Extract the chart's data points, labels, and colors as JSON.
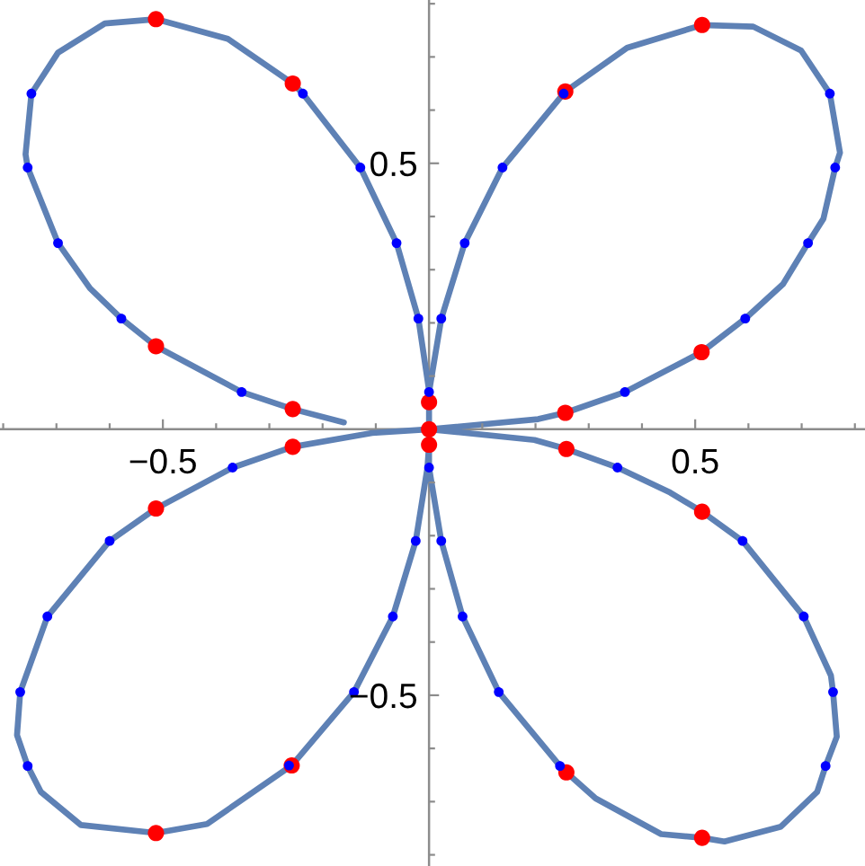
{
  "chart_data": {
    "type": "line",
    "series": [
      {
        "color": "#5e81b5",
        "line_style": "solid",
        "x": [
          0,
          0.205,
          0.256,
          0.368,
          0.512,
          0.594,
          0.665,
          0.712,
          0.741,
          0.763,
          0.772,
          0.753,
          0.699,
          0.609,
          0.513,
          0.372,
          0.256,
          0.138,
          0.067,
          0.023,
          0,
          0,
          0,
          0,
          0,
          0.023,
          0.063,
          0.131,
          0.246,
          0.258,
          0.313,
          0.436,
          0.513,
          0.555,
          0.661,
          0.729,
          0.745,
          0.766,
          0.759,
          0.755,
          0.704,
          0.589,
          0.513,
          0.453,
          0.354,
          0.258,
          0.198,
          0,
          -0.107,
          -0.256,
          -0.369,
          -0.513,
          -0.6,
          -0.717,
          -0.768,
          -0.774,
          -0.754,
          -0.729,
          -0.654,
          -0.513,
          -0.417,
          -0.258,
          -0.141,
          -0.068,
          -0.025,
          -0.003,
          0,
          0,
          0,
          0,
          -0.02,
          -0.061,
          -0.129,
          -0.237,
          -0.256,
          -0.378,
          -0.513,
          -0.609,
          -0.697,
          -0.747,
          -0.758,
          -0.754,
          -0.697,
          -0.637,
          -0.578,
          -0.513,
          -0.352,
          -0.256,
          -0.16
        ],
        "values": [
          0,
          0.019,
          0.031,
          0.07,
          0.145,
          0.208,
          0.273,
          0.35,
          0.396,
          0.492,
          0.52,
          0.631,
          0.712,
          0.757,
          0.76,
          0.717,
          0.635,
          0.492,
          0.35,
          0.208,
          0.07,
          0.051,
          0,
          -0.029,
          -0.072,
          -0.21,
          -0.352,
          -0.494,
          -0.633,
          -0.645,
          -0.694,
          -0.761,
          -0.768,
          -0.775,
          -0.747,
          -0.682,
          -0.633,
          -0.578,
          -0.494,
          -0.463,
          -0.352,
          -0.21,
          -0.155,
          -0.119,
          -0.072,
          -0.037,
          -0.02,
          0,
          -0.007,
          -0.033,
          -0.072,
          -0.149,
          -0.21,
          -0.352,
          -0.494,
          -0.575,
          -0.633,
          -0.682,
          -0.744,
          -0.759,
          -0.742,
          -0.632,
          -0.494,
          -0.352,
          -0.21,
          -0.072,
          -0.029,
          0,
          0.051,
          0.073,
          0.208,
          0.35,
          0.492,
          0.631,
          0.65,
          0.734,
          0.771,
          0.763,
          0.708,
          0.631,
          0.517,
          0.492,
          0.35,
          0.265,
          0.208,
          0.156,
          0.07,
          0.038,
          0.013
        ]
      },
      {
        "type": "scatter",
        "color": "#ff0000",
        "marker": "circle",
        "x": [
          0,
          0.256,
          0.512,
          0.513,
          0.256,
          0,
          0,
          0.258,
          0.513,
          0.513,
          0.258,
          -0.256,
          -0.513,
          -0.513,
          -0.258,
          -0.256,
          -0.513,
          -0.513,
          -0.256
        ],
        "values": [
          0,
          0.031,
          0.145,
          0.76,
          0.635,
          0.051,
          -0.029,
          -0.645,
          -0.768,
          -0.155,
          -0.037,
          -0.033,
          -0.149,
          -0.759,
          -0.632,
          0.65,
          0.771,
          0.156,
          0.038
        ]
      },
      {
        "type": "scatter",
        "color": "#0000ff",
        "marker": "circle",
        "x": [
          0,
          0.023,
          0.067,
          0.138,
          0.253,
          0.753,
          0.763,
          0.712,
          0.594,
          0.368,
          -0.02,
          -0.061,
          -0.129,
          -0.237,
          -0.747,
          -0.754,
          -0.697,
          -0.578,
          -0.352,
          0,
          0.023,
          0.063,
          0.131,
          0.246,
          0.745,
          0.759,
          0.704,
          0.589,
          0.354,
          -0.025,
          -0.068,
          -0.141,
          -0.263,
          -0.754,
          -0.768,
          -0.717,
          -0.6,
          -0.369
        ],
        "values": [
          0.07,
          0.208,
          0.35,
          0.492,
          0.631,
          0.631,
          0.492,
          0.35,
          0.208,
          0.07,
          0.208,
          0.35,
          0.492,
          0.631,
          0.631,
          0.492,
          0.35,
          0.208,
          0.07,
          -0.072,
          -0.21,
          -0.352,
          -0.494,
          -0.633,
          -0.633,
          -0.494,
          -0.352,
          -0.21,
          -0.072,
          -0.21,
          -0.352,
          -0.494,
          -0.632,
          -0.633,
          -0.494,
          -0.352,
          -0.21,
          -0.072
        ]
      }
    ],
    "xlim": [
      -0.806,
      0.819
    ],
    "ylim": [
      -0.821,
      0.807
    ],
    "xticks": [
      {
        "value": -0.8,
        "label": null
      },
      {
        "value": -0.7,
        "label": null
      },
      {
        "value": -0.6,
        "label": null
      },
      {
        "value": -0.5,
        "label": "−0.5"
      },
      {
        "value": -0.4,
        "label": null
      },
      {
        "value": -0.3,
        "label": null
      },
      {
        "value": -0.2,
        "label": null
      },
      {
        "value": -0.1,
        "label": null
      },
      {
        "value": 0.1,
        "label": null
      },
      {
        "value": 0.2,
        "label": null
      },
      {
        "value": 0.3,
        "label": null
      },
      {
        "value": 0.4,
        "label": null
      },
      0.5,
      {
        "value": 0.6,
        "label": null
      },
      {
        "value": 0.7,
        "label": null
      },
      {
        "value": 0.8,
        "label": null
      }
    ],
    "yticks": [
      {
        "value": -0.8,
        "label": null
      },
      {
        "value": -0.7,
        "label": null
      },
      {
        "value": -0.6,
        "label": null
      },
      {
        "value": -0.5,
        "label": "−0.5"
      },
      {
        "value": -0.4,
        "label": null
      },
      {
        "value": -0.3,
        "label": null
      },
      {
        "value": -0.2,
        "label": null
      },
      {
        "value": -0.1,
        "label": null
      },
      {
        "value": 0.1,
        "label": null
      },
      {
        "value": 0.2,
        "label": null
      },
      {
        "value": 0.3,
        "label": null
      },
      {
        "value": 0.4,
        "label": null
      },
      0.5,
      {
        "value": 0.6,
        "label": null
      },
      {
        "value": 0.7,
        "label": null
      },
      {
        "value": 0.8,
        "label": null
      }
    ]
  }
}
